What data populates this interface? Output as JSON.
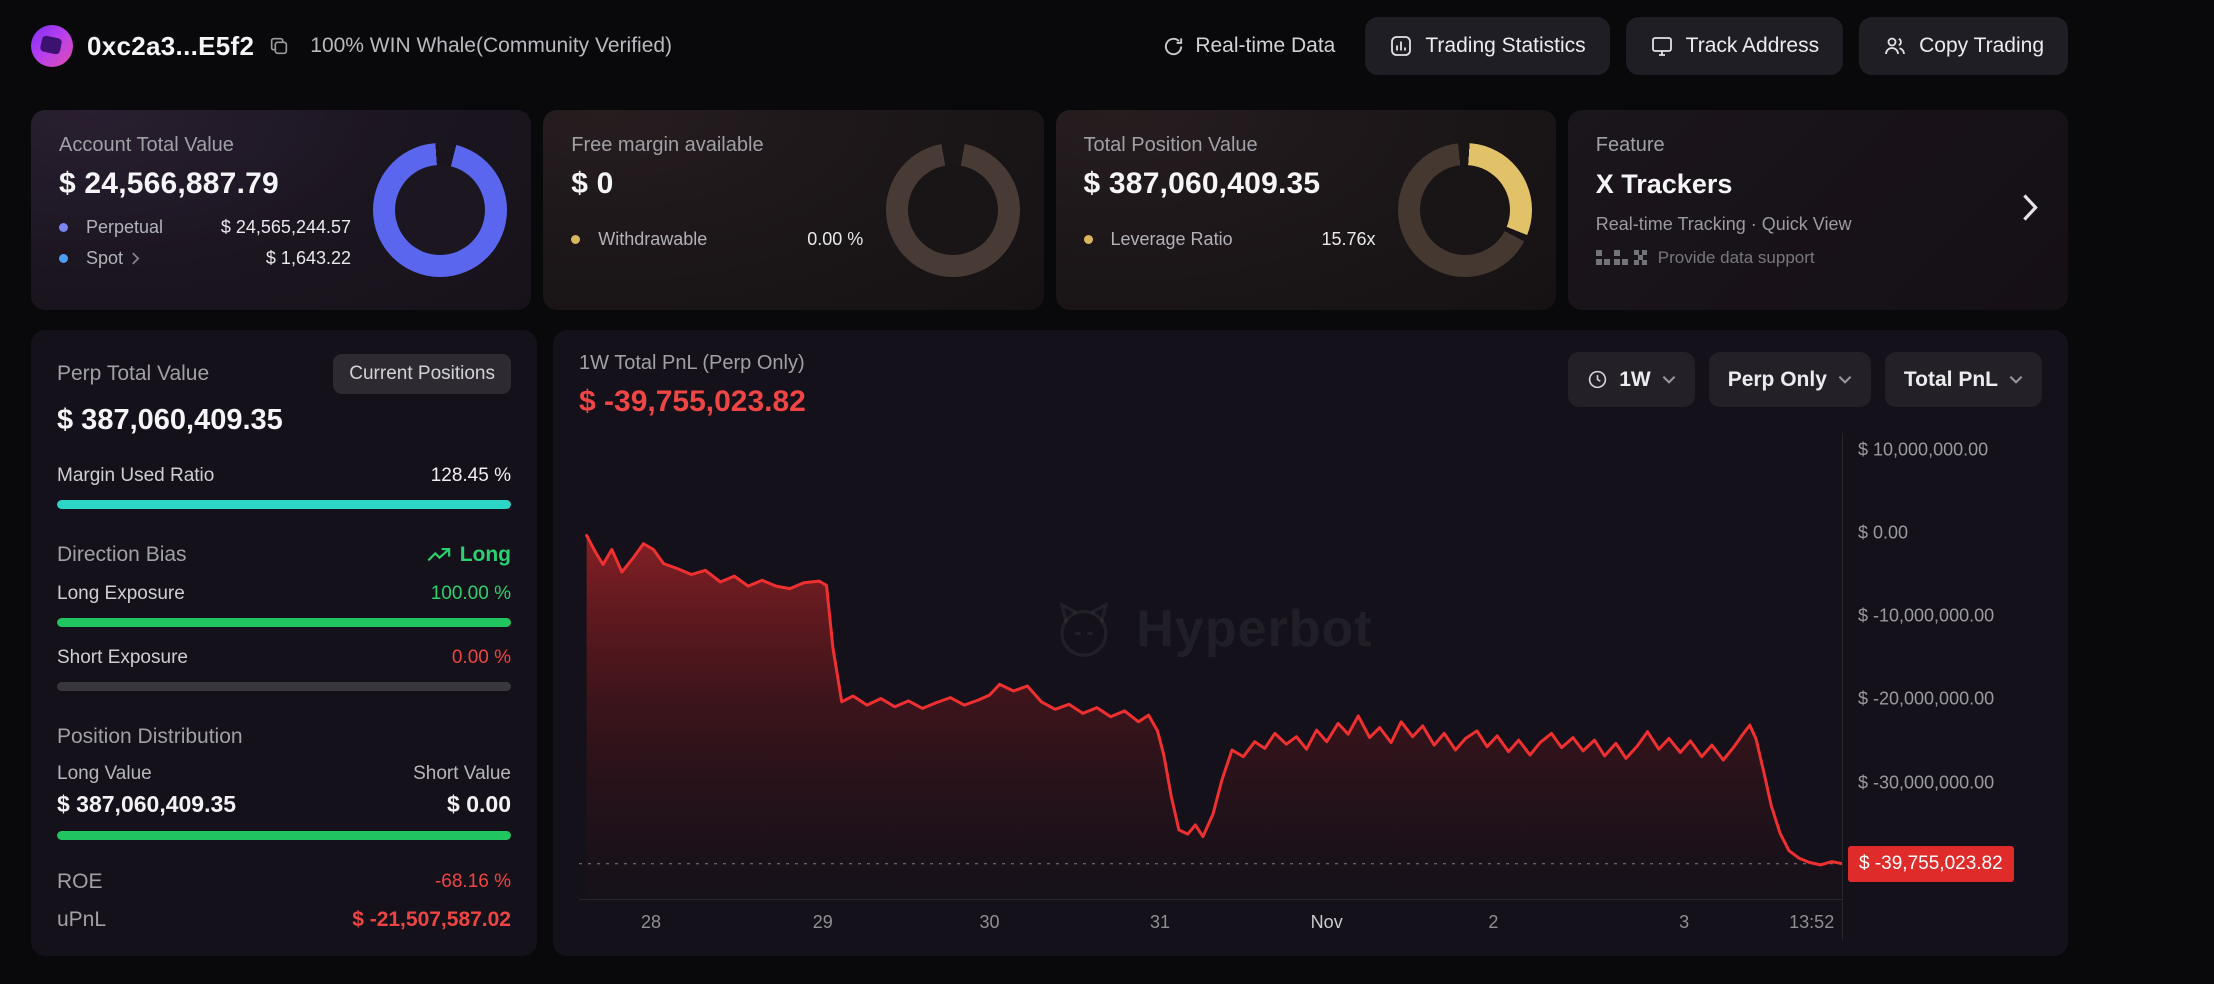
{
  "colors": {
    "accent_blue": "#5a66ee",
    "accent_yellow": "#e2c268",
    "cyan": "#2bd6c6",
    "green": "#21c55f",
    "red": "#ef4444",
    "chart_line_red": "#f03030",
    "badge_red": "#e02b2b"
  },
  "header": {
    "address": "0xc2a3...E5f2",
    "badge": "100% WIN Whale(Community Verified)",
    "realtime_label": "Real-time Data",
    "buttons": [
      {
        "label": "Trading Statistics"
      },
      {
        "label": "Track Address"
      },
      {
        "label": "Copy Trading"
      }
    ]
  },
  "cards": {
    "account": {
      "title": "Account Total Value",
      "value": "$ 24,566,887.79",
      "perpetual_label": "Perpetual",
      "perpetual_value": "$ 24,565,244.57",
      "spot_label": "Spot",
      "spot_value": "$ 1,643.22"
    },
    "margin": {
      "title": "Free margin available",
      "value": "$ 0",
      "withdrawable_label": "Withdrawable",
      "withdrawable_value": "0.00 %"
    },
    "position": {
      "title": "Total Position Value",
      "value": "$ 387,060,409.35",
      "leverage_label": "Leverage Ratio",
      "leverage_value": "15.76x"
    },
    "feature": {
      "title": "Feature",
      "name": "X Trackers",
      "subtitle": "Real-time Tracking · Quick View",
      "support": "Provide data support"
    }
  },
  "perp": {
    "title": "Perp Total Value",
    "positions_button": "Current Positions",
    "value": "$ 387,060,409.35",
    "margin_used_label": "Margin Used Ratio",
    "margin_used_value": "128.45 %",
    "direction_label": "Direction Bias",
    "direction_value": "Long",
    "long_exposure_label": "Long Exposure",
    "long_exposure_value": "100.00 %",
    "short_exposure_label": "Short Exposure",
    "short_exposure_value": "0.00 %",
    "distribution_title": "Position Distribution",
    "long_value_label": "Long Value",
    "short_value_label": "Short Value",
    "long_value": "$ 387,060,409.35",
    "short_value": "$ 0.00",
    "roe_label": "ROE",
    "roe_value": "-68.16 %",
    "upnl_label": "uPnL",
    "upnl_value": "$ -21,507,587.02"
  },
  "chart": {
    "title": "1W Total PnL (Perp Only)",
    "value": "$ -39,755,023.82",
    "range_label": "1W",
    "scope_label": "Perp Only",
    "metric_label": "Total PnL",
    "watermark": "Hyperbot"
  },
  "chart_data": {
    "type": "area",
    "title": "1W Total PnL (Perp Only)",
    "unit": "USD_millions",
    "ylim": [
      -44000000,
      12000000
    ],
    "final_value": -39755023.82,
    "final_label": "$ -39,755,023.82",
    "line_color": "#f03030",
    "y_ticks": [
      {
        "label": "$ 10,000,000.00",
        "value": 10000000
      },
      {
        "label": "$ 0.00",
        "value": 0
      },
      {
        "label": "$ -10,000,000.00",
        "value": -10000000
      },
      {
        "label": "$ -20,000,000.00",
        "value": -20000000
      },
      {
        "label": "$ -30,000,000.00",
        "value": -30000000
      }
    ],
    "x_ticks": [
      {
        "label": "28",
        "f": 0.057
      },
      {
        "label": "29",
        "f": 0.193
      },
      {
        "label": "30",
        "f": 0.325
      },
      {
        "label": "31",
        "f": 0.46
      },
      {
        "label": "Nov",
        "f": 0.592,
        "strong": true
      },
      {
        "label": "2",
        "f": 0.724
      },
      {
        "label": "3",
        "f": 0.875
      },
      {
        "label": "13:52",
        "f": 0.976
      }
    ],
    "series": [
      {
        "name": "Total PnL",
        "points": [
          [
            0.006,
            -0.3
          ],
          [
            0.013,
            -2.3
          ],
          [
            0.019,
            -3.8
          ],
          [
            0.026,
            -2.0
          ],
          [
            0.034,
            -4.7
          ],
          [
            0.043,
            -3.0
          ],
          [
            0.051,
            -1.3
          ],
          [
            0.059,
            -2.0
          ],
          [
            0.067,
            -3.7
          ],
          [
            0.078,
            -4.3
          ],
          [
            0.089,
            -5.0
          ],
          [
            0.1,
            -4.5
          ],
          [
            0.112,
            -5.9
          ],
          [
            0.123,
            -5.2
          ],
          [
            0.134,
            -6.4
          ],
          [
            0.145,
            -5.7
          ],
          [
            0.156,
            -6.4
          ],
          [
            0.167,
            -6.7
          ],
          [
            0.178,
            -6.0
          ],
          [
            0.19,
            -5.8
          ],
          [
            0.196,
            -6.3
          ],
          [
            0.201,
            -13.8
          ],
          [
            0.208,
            -20.3
          ],
          [
            0.217,
            -19.6
          ],
          [
            0.228,
            -20.7
          ],
          [
            0.239,
            -19.9
          ],
          [
            0.25,
            -20.9
          ],
          [
            0.261,
            -20.2
          ],
          [
            0.272,
            -21.1
          ],
          [
            0.283,
            -20.4
          ],
          [
            0.294,
            -19.8
          ],
          [
            0.305,
            -20.7
          ],
          [
            0.316,
            -20.1
          ],
          [
            0.325,
            -19.5
          ],
          [
            0.333,
            -18.2
          ],
          [
            0.344,
            -19.0
          ],
          [
            0.355,
            -18.4
          ],
          [
            0.366,
            -20.3
          ],
          [
            0.377,
            -21.2
          ],
          [
            0.388,
            -20.6
          ],
          [
            0.399,
            -21.7
          ],
          [
            0.41,
            -21.0
          ],
          [
            0.421,
            -22.1
          ],
          [
            0.432,
            -21.4
          ],
          [
            0.443,
            -22.7
          ],
          [
            0.451,
            -21.9
          ],
          [
            0.458,
            -23.8
          ],
          [
            0.463,
            -26.7
          ],
          [
            0.469,
            -31.7
          ],
          [
            0.475,
            -35.7
          ],
          [
            0.482,
            -36.2
          ],
          [
            0.488,
            -35.1
          ],
          [
            0.494,
            -36.5
          ],
          [
            0.502,
            -33.8
          ],
          [
            0.509,
            -29.7
          ],
          [
            0.517,
            -26.1
          ],
          [
            0.526,
            -26.9
          ],
          [
            0.535,
            -25.1
          ],
          [
            0.543,
            -25.9
          ],
          [
            0.551,
            -24.1
          ],
          [
            0.56,
            -25.4
          ],
          [
            0.568,
            -24.5
          ],
          [
            0.576,
            -26.0
          ],
          [
            0.584,
            -23.7
          ],
          [
            0.592,
            -25.1
          ],
          [
            0.601,
            -22.9
          ],
          [
            0.609,
            -24.2
          ],
          [
            0.617,
            -22.0
          ],
          [
            0.626,
            -24.6
          ],
          [
            0.634,
            -23.4
          ],
          [
            0.643,
            -25.2
          ],
          [
            0.651,
            -22.7
          ],
          [
            0.66,
            -24.5
          ],
          [
            0.668,
            -23.2
          ],
          [
            0.677,
            -25.5
          ],
          [
            0.685,
            -24.1
          ],
          [
            0.694,
            -26.1
          ],
          [
            0.702,
            -24.7
          ],
          [
            0.711,
            -23.8
          ],
          [
            0.719,
            -25.7
          ],
          [
            0.727,
            -24.4
          ],
          [
            0.736,
            -26.3
          ],
          [
            0.744,
            -24.9
          ],
          [
            0.753,
            -26.7
          ],
          [
            0.761,
            -25.2
          ],
          [
            0.77,
            -24.1
          ],
          [
            0.778,
            -25.8
          ],
          [
            0.787,
            -24.6
          ],
          [
            0.795,
            -26.2
          ],
          [
            0.804,
            -24.9
          ],
          [
            0.812,
            -26.8
          ],
          [
            0.821,
            -25.3
          ],
          [
            0.829,
            -27.1
          ],
          [
            0.838,
            -25.6
          ],
          [
            0.846,
            -23.9
          ],
          [
            0.855,
            -26.0
          ],
          [
            0.863,
            -24.7
          ],
          [
            0.872,
            -26.4
          ],
          [
            0.88,
            -25.0
          ],
          [
            0.889,
            -26.9
          ],
          [
            0.897,
            -25.5
          ],
          [
            0.906,
            -27.3
          ],
          [
            0.914,
            -25.8
          ],
          [
            0.921,
            -24.3
          ],
          [
            0.927,
            -23.1
          ],
          [
            0.932,
            -24.8
          ],
          [
            0.938,
            -28.7
          ],
          [
            0.944,
            -32.8
          ],
          [
            0.951,
            -36.1
          ],
          [
            0.958,
            -38.2
          ],
          [
            0.966,
            -39.1
          ],
          [
            0.974,
            -39.6
          ],
          [
            0.983,
            -39.9
          ],
          [
            0.992,
            -39.5
          ],
          [
            1.0,
            -39.76
          ]
        ]
      }
    ]
  }
}
